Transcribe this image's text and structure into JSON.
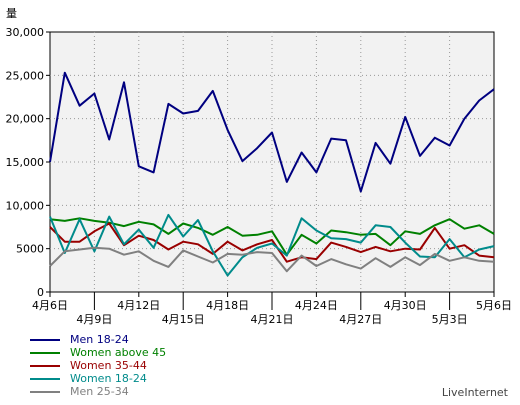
{
  "chart_data": {
    "type": "line",
    "ylabel": "量",
    "ylim": [
      0,
      30000
    ],
    "yticks": [
      0,
      5000,
      10000,
      15000,
      20000,
      25000,
      30000
    ],
    "ytick_labels": [
      "0",
      "5000",
      "10,000",
      "15,000",
      "20,000",
      "25,000",
      "30,000"
    ],
    "x": [
      "4月6日",
      "4月7日",
      "4月8日",
      "4月9日",
      "4月10日",
      "4月11日",
      "4月12日",
      "4月13日",
      "4月14日",
      "4月15日",
      "4月16日",
      "4月17日",
      "4月18日",
      "4月19日",
      "4月20日",
      "4月21日",
      "4月22日",
      "4月23日",
      "4月24日",
      "4月25日",
      "4月26日",
      "4月27日",
      "4月28日",
      "4月29日",
      "4月30日",
      "5月1日",
      "5月2日",
      "5月3日",
      "5月4日",
      "5月5日",
      "5月6日"
    ],
    "xtick_labels": [
      {
        "label": "4月6日",
        "index": 0,
        "row": 0
      },
      {
        "label": "4月9日",
        "index": 3,
        "row": 1
      },
      {
        "label": "4月12日",
        "index": 6,
        "row": 0
      },
      {
        "label": "4月15日",
        "index": 9,
        "row": 1
      },
      {
        "label": "4月18日",
        "index": 12,
        "row": 0
      },
      {
        "label": "4月21日",
        "index": 15,
        "row": 1
      },
      {
        "label": "4月24日",
        "index": 18,
        "row": 0
      },
      {
        "label": "4月27日",
        "index": 21,
        "row": 1
      },
      {
        "label": "4月30日",
        "index": 24,
        "row": 0
      },
      {
        "label": "5月3日",
        "index": 27,
        "row": 1
      },
      {
        "label": "5月6日",
        "index": 30,
        "row": 0
      }
    ],
    "grid": true,
    "legend_position": "bottom-left",
    "series": [
      {
        "name": "Men 18-24",
        "color": "#000080",
        "values": [
          15000,
          25300,
          21500,
          22900,
          17600,
          24200,
          14500,
          13800,
          21700,
          20600,
          20900,
          23200,
          18700,
          15100,
          16600,
          18400,
          12700,
          16100,
          13800,
          17700,
          17500,
          11600,
          17200,
          14800,
          20200,
          15700,
          17800,
          16900,
          20000,
          22100,
          23400
        ]
      },
      {
        "name": "Women above 45",
        "color": "#008000",
        "values": [
          8400,
          8200,
          8500,
          8200,
          8000,
          7600,
          8100,
          7800,
          6700,
          7900,
          7400,
          6600,
          7500,
          6500,
          6600,
          7000,
          4300,
          6600,
          5600,
          7100,
          6900,
          6600,
          6700,
          5400,
          7000,
          6700,
          7700,
          8400,
          7300,
          7700,
          6700
        ]
      },
      {
        "name": "Women 35-44",
        "color": "#990000",
        "values": [
          7500,
          5800,
          5800,
          7000,
          7900,
          5400,
          6500,
          6000,
          4900,
          5800,
          5500,
          4400,
          5800,
          4800,
          5500,
          6000,
          3500,
          4000,
          3800,
          5700,
          5200,
          4600,
          5200,
          4700,
          5000,
          4900,
          7400,
          5000,
          5400,
          4200,
          4000
        ]
      },
      {
        "name": "Women 18-24",
        "color": "#008b8b",
        "values": [
          8700,
          4500,
          8400,
          4700,
          8700,
          5500,
          7200,
          5100,
          8900,
          6400,
          8300,
          4700,
          1900,
          4000,
          5100,
          5600,
          4200,
          8500,
          7100,
          6200,
          6100,
          5700,
          7700,
          7500,
          5700,
          4100,
          4000,
          6100,
          4000,
          4900,
          5300
        ]
      },
      {
        "name": "Men 25-34",
        "color": "#808080",
        "values": [
          3000,
          4700,
          4900,
          5100,
          5000,
          4300,
          4700,
          3600,
          2900,
          4800,
          4100,
          3400,
          4400,
          4300,
          4600,
          4500,
          2400,
          4200,
          3000,
          3800,
          3200,
          2700,
          3900,
          2900,
          4000,
          3100,
          4400,
          3600,
          4000,
          3600,
          3500
        ]
      }
    ]
  },
  "branding": "LiveInternet"
}
